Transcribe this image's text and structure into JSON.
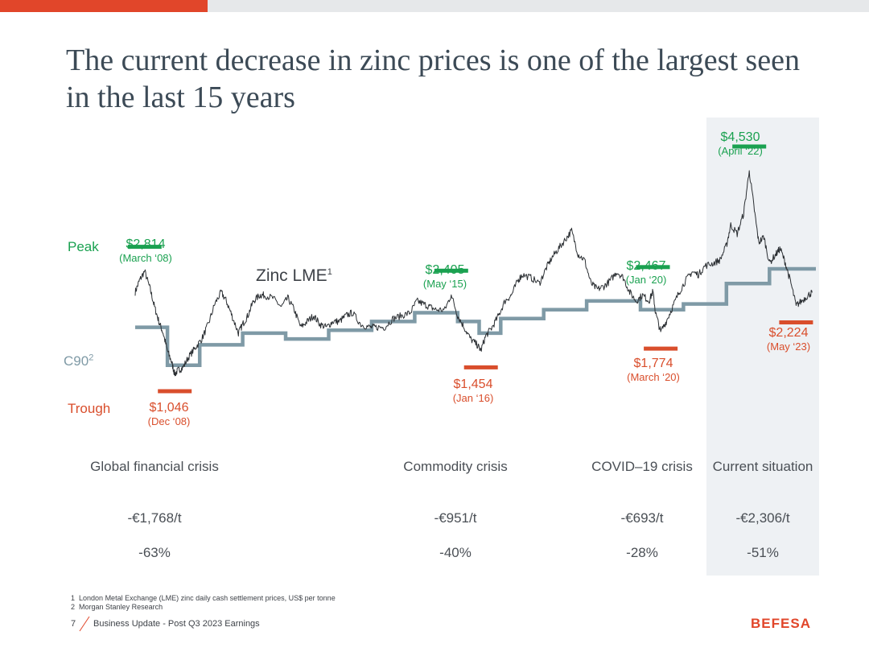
{
  "title": "The current decrease in zinc prices is one of the largest seen in the last 15 years",
  "colors": {
    "accent": "#e1462a",
    "peak": "#1aa150",
    "trough": "#d94e2c",
    "c90": "#7f9aa6",
    "line": "#2b2f33"
  },
  "labels": {
    "peak": "Peak",
    "trough": "Trough",
    "c90": "C90",
    "c90_sup": "2",
    "zinc_lme": "Zinc LME",
    "zinc_lme_sup": "1"
  },
  "chart_data": {
    "type": "line",
    "title": "Zinc LME",
    "y_unit": "US$ per tonne",
    "ylim": [
      800,
      4700
    ],
    "x_range_years": [
      2008.0,
      2023.83
    ],
    "series": [
      {
        "name": "Zinc LME",
        "kind": "line",
        "points": [
          [
            2008.0,
            2450
          ],
          [
            2008.1,
            2650
          ],
          [
            2008.22,
            2814
          ],
          [
            2008.35,
            2500
          ],
          [
            2008.45,
            2200
          ],
          [
            2008.55,
            1950
          ],
          [
            2008.65,
            1750
          ],
          [
            2008.75,
            1450
          ],
          [
            2008.85,
            1250
          ],
          [
            2008.92,
            1046
          ],
          [
            2009.0,
            1120
          ],
          [
            2009.1,
            1150
          ],
          [
            2009.25,
            1350
          ],
          [
            2009.4,
            1500
          ],
          [
            2009.55,
            1650
          ],
          [
            2009.7,
            1900
          ],
          [
            2009.85,
            2250
          ],
          [
            2010.0,
            2450
          ],
          [
            2010.12,
            2300
          ],
          [
            2010.25,
            2050
          ],
          [
            2010.4,
            1750
          ],
          [
            2010.5,
            1900
          ],
          [
            2010.62,
            2050
          ],
          [
            2010.75,
            2300
          ],
          [
            2010.9,
            2400
          ],
          [
            2011.0,
            2400
          ],
          [
            2011.2,
            2350
          ],
          [
            2011.4,
            2200
          ],
          [
            2011.55,
            2350
          ],
          [
            2011.7,
            2150
          ],
          [
            2011.85,
            1850
          ],
          [
            2012.0,
            1950
          ],
          [
            2012.15,
            2050
          ],
          [
            2012.3,
            1900
          ],
          [
            2012.45,
            1850
          ],
          [
            2012.6,
            1950
          ],
          [
            2012.75,
            1950
          ],
          [
            2012.9,
            2050
          ],
          [
            2013.05,
            2100
          ],
          [
            2013.25,
            1900
          ],
          [
            2013.45,
            1850
          ],
          [
            2013.6,
            1850
          ],
          [
            2013.8,
            1850
          ],
          [
            2014.0,
            2000
          ],
          [
            2014.2,
            2050
          ],
          [
            2014.4,
            2100
          ],
          [
            2014.55,
            2300
          ],
          [
            2014.7,
            2250
          ],
          [
            2014.85,
            2200
          ],
          [
            2015.0,
            2150
          ],
          [
            2015.2,
            2150
          ],
          [
            2015.35,
            2405
          ],
          [
            2015.5,
            2050
          ],
          [
            2015.65,
            1850
          ],
          [
            2015.8,
            1650
          ],
          [
            2015.95,
            1550
          ],
          [
            2016.04,
            1454
          ],
          [
            2016.15,
            1700
          ],
          [
            2016.3,
            1850
          ],
          [
            2016.45,
            2050
          ],
          [
            2016.6,
            2300
          ],
          [
            2016.75,
            2400
          ],
          [
            2016.9,
            2650
          ],
          [
            2017.0,
            2750
          ],
          [
            2017.2,
            2700
          ],
          [
            2017.4,
            2600
          ],
          [
            2017.55,
            2850
          ],
          [
            2017.7,
            3050
          ],
          [
            2017.85,
            3200
          ],
          [
            2018.0,
            3350
          ],
          [
            2018.15,
            3500
          ],
          [
            2018.3,
            3100
          ],
          [
            2018.45,
            3000
          ],
          [
            2018.6,
            2600
          ],
          [
            2018.75,
            2500
          ],
          [
            2018.9,
            2550
          ],
          [
            2019.05,
            2650
          ],
          [
            2019.2,
            2800
          ],
          [
            2019.35,
            2700
          ],
          [
            2019.5,
            2450
          ],
          [
            2019.65,
            2300
          ],
          [
            2019.8,
            2400
          ],
          [
            2019.95,
            2300
          ],
          [
            2020.04,
            2467
          ],
          [
            2020.1,
            2100
          ],
          [
            2020.22,
            1774
          ],
          [
            2020.35,
            1950
          ],
          [
            2020.5,
            2200
          ],
          [
            2020.65,
            2450
          ],
          [
            2020.8,
            2650
          ],
          [
            2020.95,
            2800
          ],
          [
            2021.1,
            2750
          ],
          [
            2021.25,
            2900
          ],
          [
            2021.45,
            2950
          ],
          [
            2021.6,
            3000
          ],
          [
            2021.75,
            3250
          ],
          [
            2021.85,
            3600
          ],
          [
            2022.0,
            3450
          ],
          [
            2022.15,
            3800
          ],
          [
            2022.28,
            4530
          ],
          [
            2022.4,
            3850
          ],
          [
            2022.5,
            3300
          ],
          [
            2022.62,
            3400
          ],
          [
            2022.75,
            2950
          ],
          [
            2022.9,
            3100
          ],
          [
            2023.0,
            3200
          ],
          [
            2023.12,
            2950
          ],
          [
            2023.25,
            2600
          ],
          [
            2023.37,
            2224
          ],
          [
            2023.5,
            2300
          ],
          [
            2023.65,
            2400
          ],
          [
            2023.75,
            2450
          ]
        ]
      },
      {
        "name": "C90",
        "kind": "step",
        "points": [
          [
            2008.0,
            1850
          ],
          [
            2008.75,
            1850
          ],
          [
            2008.75,
            1200
          ],
          [
            2009.5,
            1200
          ],
          [
            2009.5,
            1550
          ],
          [
            2010.5,
            1550
          ],
          [
            2010.5,
            1750
          ],
          [
            2011.5,
            1750
          ],
          [
            2011.5,
            1650
          ],
          [
            2012.5,
            1650
          ],
          [
            2012.5,
            1800
          ],
          [
            2013.5,
            1800
          ],
          [
            2013.5,
            1950
          ],
          [
            2014.5,
            1950
          ],
          [
            2014.5,
            2100
          ],
          [
            2015.5,
            2100
          ],
          [
            2015.5,
            1950
          ],
          [
            2016.0,
            1950
          ],
          [
            2016.0,
            1750
          ],
          [
            2016.5,
            1750
          ],
          [
            2016.5,
            2000
          ],
          [
            2017.5,
            2000
          ],
          [
            2017.5,
            2150
          ],
          [
            2018.5,
            2150
          ],
          [
            2018.5,
            2300
          ],
          [
            2019.75,
            2300
          ],
          [
            2019.75,
            2150
          ],
          [
            2020.75,
            2150
          ],
          [
            2020.75,
            2250
          ],
          [
            2021.75,
            2250
          ],
          [
            2021.75,
            2600
          ],
          [
            2022.75,
            2600
          ],
          [
            2022.75,
            2850
          ],
          [
            2023.83,
            2850
          ]
        ]
      }
    ],
    "annotations": [
      {
        "kind": "peak",
        "x": 2008.22,
        "value": 2814,
        "label": "$2,814",
        "date": "(March ‘08)"
      },
      {
        "kind": "trough",
        "x": 2008.92,
        "value": 1046,
        "label": "$1,046",
        "date": "(Dec ‘08)"
      },
      {
        "kind": "peak",
        "x": 2015.35,
        "value": 2405,
        "label": "$2,405",
        "date": "(May ‘15)"
      },
      {
        "kind": "trough",
        "x": 2016.04,
        "value": 1454,
        "label": "$1,454",
        "date": "(Jan ‘16)"
      },
      {
        "kind": "peak",
        "x": 2020.04,
        "value": 2467,
        "label": "$2,467",
        "date": "(Jan ‘20)"
      },
      {
        "kind": "trough",
        "x": 2020.22,
        "value": 1774,
        "label": "$1,774",
        "date": "(March ‘20)"
      },
      {
        "kind": "peak",
        "x": 2022.28,
        "value": 4530,
        "label": "$4,530",
        "date": "(April ‘22)"
      },
      {
        "kind": "trough",
        "x": 2023.37,
        "value": 2224,
        "label": "$2,224",
        "date": "(May ‘23)"
      }
    ]
  },
  "summary": [
    {
      "name": "Global financial crisis",
      "abs": "-€1,768/t",
      "pct": "-63%"
    },
    {
      "name": "Commodity crisis",
      "abs": "-€951/t",
      "pct": "-40%"
    },
    {
      "name": "COVID–19 crisis",
      "abs": "-€693/t",
      "pct": "-28%"
    },
    {
      "name": "Current situation",
      "abs": "-€2,306/t",
      "pct": "-51%"
    }
  ],
  "footnotes": [
    {
      "num": "1",
      "text": "London Metal Exchange (LME) zinc daily cash settlement prices, US$ per tonne"
    },
    {
      "num": "2",
      "text": "Morgan Stanley Research"
    }
  ],
  "footer": {
    "page": "7",
    "text": "Business Update - Post Q3 2023 Earnings",
    "logo": "BEFESA"
  }
}
